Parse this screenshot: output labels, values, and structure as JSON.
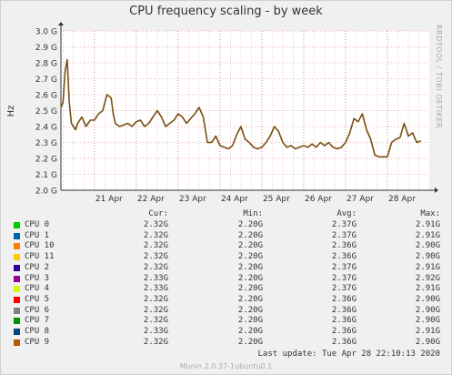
{
  "title": "CPU frequency scaling - by week",
  "side_label": "RRDTOOL / TOBI OETIKER",
  "last_update": "Last update: Tue Apr 28 22:10:13 2020",
  "footer": "Munin 2.0.37-1ubuntu0.1",
  "colors": {
    "line": "#7a4f15",
    "grid": "#e8a0a0",
    "axis_text": "#333333"
  },
  "legend": {
    "headers": [
      "Cur:",
      "Min:",
      "Avg:",
      "Max:"
    ],
    "rows": [
      {
        "name": "CPU 0",
        "color": "#00cc00",
        "cur": "2.32G",
        "min": "2.20G",
        "avg": "2.37G",
        "max": "2.91G"
      },
      {
        "name": "CPU 1",
        "color": "#0066b3",
        "cur": "2.32G",
        "min": "2.20G",
        "avg": "2.37G",
        "max": "2.91G"
      },
      {
        "name": "CPU 10",
        "color": "#ff8000",
        "cur": "2.32G",
        "min": "2.20G",
        "avg": "2.36G",
        "max": "2.90G"
      },
      {
        "name": "CPU 11",
        "color": "#ffcc00",
        "cur": "2.32G",
        "min": "2.20G",
        "avg": "2.36G",
        "max": "2.90G"
      },
      {
        "name": "CPU 2",
        "color": "#330099",
        "cur": "2.32G",
        "min": "2.20G",
        "avg": "2.37G",
        "max": "2.91G"
      },
      {
        "name": "CPU 3",
        "color": "#990099",
        "cur": "2.33G",
        "min": "2.20G",
        "avg": "2.37G",
        "max": "2.92G"
      },
      {
        "name": "CPU 4",
        "color": "#ccff00",
        "cur": "2.33G",
        "min": "2.20G",
        "avg": "2.37G",
        "max": "2.91G"
      },
      {
        "name": "CPU 5",
        "color": "#ff0000",
        "cur": "2.32G",
        "min": "2.20G",
        "avg": "2.36G",
        "max": "2.90G"
      },
      {
        "name": "CPU 6",
        "color": "#808080",
        "cur": "2.32G",
        "min": "2.20G",
        "avg": "2.36G",
        "max": "2.90G"
      },
      {
        "name": "CPU 7",
        "color": "#008f00",
        "cur": "2.32G",
        "min": "2.20G",
        "avg": "2.36G",
        "max": "2.90G"
      },
      {
        "name": "CPU 8",
        "color": "#00487d",
        "cur": "2.33G",
        "min": "2.20G",
        "avg": "2.36G",
        "max": "2.91G"
      },
      {
        "name": "CPU 9",
        "color": "#b35a00",
        "cur": "2.32G",
        "min": "2.20G",
        "avg": "2.36G",
        "max": "2.90G"
      }
    ]
  },
  "chart_data": {
    "type": "line",
    "title": "CPU frequency scaling - by week",
    "ylabel": "Hz",
    "ylim": [
      2.0,
      3.0
    ],
    "ytick_labels": [
      "2.0 G",
      "2.1 G",
      "2.2 G",
      "2.3 G",
      "2.4 G",
      "2.5 G",
      "2.6 G",
      "2.7 G",
      "2.8 G",
      "2.9 G",
      "3.0 G"
    ],
    "ytick_values": [
      2.0,
      2.1,
      2.2,
      2.3,
      2.4,
      2.5,
      2.6,
      2.7,
      2.8,
      2.9,
      3.0
    ],
    "xlim": [
      20.2,
      29.0
    ],
    "xtick_labels": [
      "21 Apr",
      "22 Apr",
      "23 Apr",
      "24 Apr",
      "25 Apr",
      "26 Apr",
      "27 Apr",
      "28 Apr"
    ],
    "xtick_values": [
      21.0,
      22.0,
      23.0,
      24.0,
      25.0,
      26.0,
      27.0,
      28.0
    ],
    "grid": true,
    "series": [
      {
        "x": [
          20.2,
          20.25,
          20.3,
          20.35,
          20.4,
          20.45,
          20.5,
          20.55,
          20.6,
          20.7,
          20.8,
          20.9,
          21.0,
          21.1,
          21.2,
          21.3,
          21.4,
          21.45,
          21.5,
          21.6,
          21.7,
          21.8,
          21.9,
          22.0,
          22.1,
          22.2,
          22.3,
          22.4,
          22.5,
          22.6,
          22.7,
          22.8,
          22.9,
          23.0,
          23.1,
          23.2,
          23.3,
          23.4,
          23.5,
          23.6,
          23.7,
          23.8,
          23.9,
          24.0,
          24.1,
          24.2,
          24.3,
          24.4,
          24.5,
          24.6,
          24.7,
          24.8,
          24.9,
          25.0,
          25.1,
          25.2,
          25.3,
          25.4,
          25.5,
          25.6,
          25.7,
          25.8,
          25.9,
          26.0,
          26.1,
          26.2,
          26.3,
          26.4,
          26.5,
          26.6,
          26.7,
          26.8,
          26.9,
          27.0,
          27.1,
          27.2,
          27.3,
          27.4,
          27.5,
          27.6,
          27.7,
          27.8,
          27.9,
          28.0,
          28.1,
          28.2,
          28.3,
          28.4,
          28.5,
          28.6,
          28.7,
          28.8
        ],
        "values": [
          2.52,
          2.55,
          2.75,
          2.82,
          2.55,
          2.42,
          2.4,
          2.38,
          2.42,
          2.46,
          2.4,
          2.44,
          2.44,
          2.48,
          2.5,
          2.6,
          2.58,
          2.48,
          2.42,
          2.4,
          2.41,
          2.42,
          2.4,
          2.43,
          2.44,
          2.4,
          2.42,
          2.46,
          2.5,
          2.46,
          2.4,
          2.42,
          2.44,
          2.48,
          2.46,
          2.42,
          2.45,
          2.48,
          2.52,
          2.46,
          2.3,
          2.3,
          2.34,
          2.28,
          2.27,
          2.26,
          2.28,
          2.35,
          2.4,
          2.32,
          2.3,
          2.27,
          2.26,
          2.27,
          2.3,
          2.34,
          2.4,
          2.37,
          2.3,
          2.27,
          2.28,
          2.26,
          2.27,
          2.28,
          2.27,
          2.29,
          2.27,
          2.3,
          2.28,
          2.3,
          2.27,
          2.26,
          2.27,
          2.3,
          2.36,
          2.45,
          2.43,
          2.48,
          2.38,
          2.32,
          2.22,
          2.21,
          2.21,
          2.21,
          2.3,
          2.32,
          2.33,
          2.42,
          2.34,
          2.36,
          2.3,
          2.31
        ]
      }
    ]
  }
}
